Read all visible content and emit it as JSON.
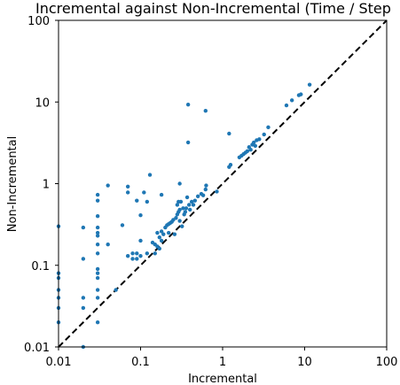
{
  "chart_data": {
    "type": "scatter",
    "title": "Incremental against Non-Incremental (Time / Step",
    "xlabel": "Incremental",
    "ylabel": "Non-Incremental",
    "xscale": "log",
    "yscale": "log",
    "xlim": [
      0.01,
      100
    ],
    "ylim": [
      0.01,
      100
    ],
    "xticks": [
      {
        "value": 0.01,
        "label": "0.01"
      },
      {
        "value": 0.1,
        "label": "0.1"
      },
      {
        "value": 1,
        "label": "1"
      },
      {
        "value": 10,
        "label": "10"
      },
      {
        "value": 100,
        "label": "100"
      }
    ],
    "yticks": [
      {
        "value": 0.01,
        "label": "0.01"
      },
      {
        "value": 0.1,
        "label": "0.1"
      },
      {
        "value": 1,
        "label": "1"
      },
      {
        "value": 10,
        "label": "10"
      },
      {
        "value": 100,
        "label": "100"
      }
    ],
    "grid": false,
    "reference_line": {
      "style": "dashed",
      "color": "#000000",
      "equation": "y = x"
    },
    "marker_color": "#1f77b4",
    "points": [
      {
        "x": 0.01,
        "y": 0.3
      },
      {
        "x": 0.01,
        "y": 0.08
      },
      {
        "x": 0.01,
        "y": 0.07
      },
      {
        "x": 0.01,
        "y": 0.05
      },
      {
        "x": 0.01,
        "y": 0.04
      },
      {
        "x": 0.01,
        "y": 0.03
      },
      {
        "x": 0.01,
        "y": 0.02
      },
      {
        "x": 0.02,
        "y": 0.29
      },
      {
        "x": 0.02,
        "y": 0.12
      },
      {
        "x": 0.02,
        "y": 0.04
      },
      {
        "x": 0.02,
        "y": 0.03
      },
      {
        "x": 0.02,
        "y": 0.01
      },
      {
        "x": 0.03,
        "y": 0.73
      },
      {
        "x": 0.03,
        "y": 0.62
      },
      {
        "x": 0.03,
        "y": 0.4
      },
      {
        "x": 0.03,
        "y": 0.29
      },
      {
        "x": 0.03,
        "y": 0.25
      },
      {
        "x": 0.03,
        "y": 0.23
      },
      {
        "x": 0.03,
        "y": 0.18
      },
      {
        "x": 0.03,
        "y": 0.14
      },
      {
        "x": 0.03,
        "y": 0.09
      },
      {
        "x": 0.03,
        "y": 0.08
      },
      {
        "x": 0.03,
        "y": 0.07
      },
      {
        "x": 0.03,
        "y": 0.05
      },
      {
        "x": 0.03,
        "y": 0.04
      },
      {
        "x": 0.03,
        "y": 0.02
      },
      {
        "x": 0.04,
        "y": 0.95
      },
      {
        "x": 0.04,
        "y": 0.18
      },
      {
        "x": 0.05,
        "y": 0.05
      },
      {
        "x": 0.06,
        "y": 0.31
      },
      {
        "x": 0.07,
        "y": 0.92
      },
      {
        "x": 0.07,
        "y": 0.78
      },
      {
        "x": 0.07,
        "y": 0.13
      },
      {
        "x": 0.08,
        "y": 0.12
      },
      {
        "x": 0.08,
        "y": 0.14
      },
      {
        "x": 0.09,
        "y": 0.62
      },
      {
        "x": 0.09,
        "y": 0.14
      },
      {
        "x": 0.09,
        "y": 0.12
      },
      {
        "x": 0.1,
        "y": 0.41
      },
      {
        "x": 0.1,
        "y": 0.2
      },
      {
        "x": 0.1,
        "y": 0.13
      },
      {
        "x": 0.11,
        "y": 0.78
      },
      {
        "x": 0.12,
        "y": 0.6
      },
      {
        "x": 0.12,
        "y": 0.14
      },
      {
        "x": 0.13,
        "y": 1.28
      },
      {
        "x": 0.14,
        "y": 0.19
      },
      {
        "x": 0.15,
        "y": 0.18
      },
      {
        "x": 0.15,
        "y": 0.14
      },
      {
        "x": 0.16,
        "y": 0.25
      },
      {
        "x": 0.16,
        "y": 0.17
      },
      {
        "x": 0.17,
        "y": 0.22
      },
      {
        "x": 0.17,
        "y": 0.16
      },
      {
        "x": 0.18,
        "y": 0.26
      },
      {
        "x": 0.18,
        "y": 0.2
      },
      {
        "x": 0.18,
        "y": 0.73
      },
      {
        "x": 0.19,
        "y": 0.24
      },
      {
        "x": 0.2,
        "y": 0.29
      },
      {
        "x": 0.21,
        "y": 0.31
      },
      {
        "x": 0.22,
        "y": 0.32
      },
      {
        "x": 0.22,
        "y": 0.25
      },
      {
        "x": 0.23,
        "y": 0.33
      },
      {
        "x": 0.24,
        "y": 0.34
      },
      {
        "x": 0.25,
        "y": 0.36
      },
      {
        "x": 0.26,
        "y": 0.24
      },
      {
        "x": 0.27,
        "y": 0.38
      },
      {
        "x": 0.28,
        "y": 0.42
      },
      {
        "x": 0.28,
        "y": 0.55
      },
      {
        "x": 0.29,
        "y": 0.45
      },
      {
        "x": 0.29,
        "y": 0.6
      },
      {
        "x": 0.3,
        "y": 0.35
      },
      {
        "x": 0.3,
        "y": 0.48
      },
      {
        "x": 0.3,
        "y": 1.0
      },
      {
        "x": 0.31,
        "y": 0.6
      },
      {
        "x": 0.32,
        "y": 0.3
      },
      {
        "x": 0.33,
        "y": 0.5
      },
      {
        "x": 0.34,
        "y": 0.42
      },
      {
        "x": 0.35,
        "y": 0.45
      },
      {
        "x": 0.36,
        "y": 0.5
      },
      {
        "x": 0.37,
        "y": 0.68
      },
      {
        "x": 0.38,
        "y": 9.3
      },
      {
        "x": 0.38,
        "y": 3.2
      },
      {
        "x": 0.39,
        "y": 0.55
      },
      {
        "x": 0.4,
        "y": 0.48
      },
      {
        "x": 0.42,
        "y": 0.6
      },
      {
        "x": 0.44,
        "y": 0.55
      },
      {
        "x": 0.46,
        "y": 0.62
      },
      {
        "x": 0.5,
        "y": 0.7
      },
      {
        "x": 0.55,
        "y": 0.75
      },
      {
        "x": 0.58,
        "y": 0.72
      },
      {
        "x": 0.62,
        "y": 0.85
      },
      {
        "x": 0.62,
        "y": 7.8
      },
      {
        "x": 0.63,
        "y": 0.95
      },
      {
        "x": 0.85,
        "y": 0.8
      },
      {
        "x": 1.2,
        "y": 4.1
      },
      {
        "x": 1.2,
        "y": 1.6
      },
      {
        "x": 1.25,
        "y": 1.7
      },
      {
        "x": 1.6,
        "y": 2.1
      },
      {
        "x": 1.7,
        "y": 2.2
      },
      {
        "x": 1.8,
        "y": 2.3
      },
      {
        "x": 1.9,
        "y": 2.4
      },
      {
        "x": 2.0,
        "y": 2.5
      },
      {
        "x": 2.1,
        "y": 2.8
      },
      {
        "x": 2.2,
        "y": 2.6
      },
      {
        "x": 2.3,
        "y": 3.0
      },
      {
        "x": 2.4,
        "y": 3.2
      },
      {
        "x": 2.5,
        "y": 2.9
      },
      {
        "x": 2.6,
        "y": 3.4
      },
      {
        "x": 2.8,
        "y": 3.5
      },
      {
        "x": 3.2,
        "y": 4.0
      },
      {
        "x": 3.6,
        "y": 4.9
      },
      {
        "x": 6.0,
        "y": 9.1
      },
      {
        "x": 7.0,
        "y": 10.5
      },
      {
        "x": 8.5,
        "y": 12.1
      },
      {
        "x": 9.0,
        "y": 12.4
      },
      {
        "x": 11.5,
        "y": 16.3
      }
    ]
  }
}
